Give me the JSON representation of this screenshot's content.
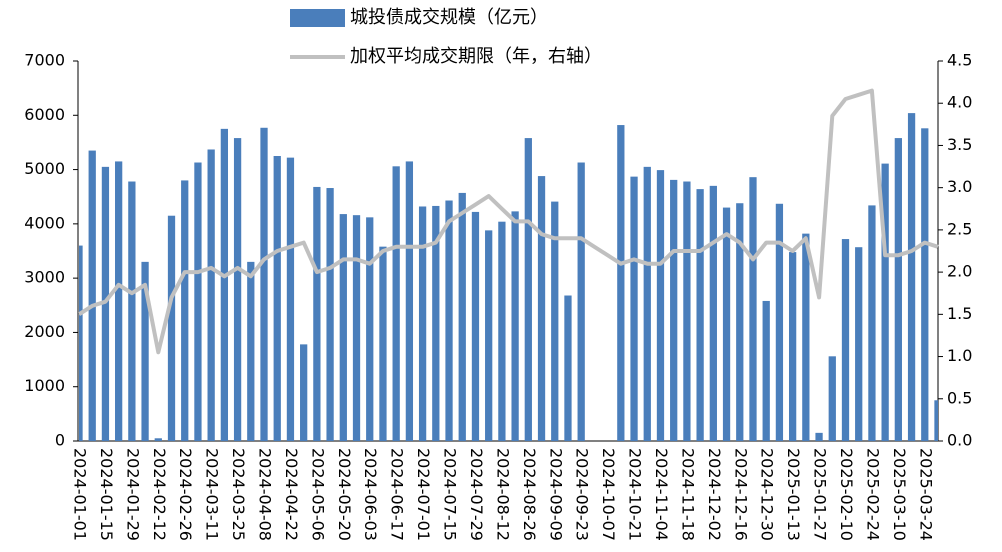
{
  "chart_data": {
    "type": "bar",
    "categories": [
      "2024-01-01",
      null,
      "2024-01-15",
      null,
      "2024-01-29",
      null,
      "2024-02-12",
      null,
      "2024-02-26",
      null,
      "2024-03-11",
      null,
      "2024-03-25",
      null,
      "2024-04-08",
      null,
      "2024-04-22",
      null,
      "2024-05-06",
      null,
      "2024-05-20",
      null,
      "2024-06-03",
      null,
      "2024-06-17",
      null,
      "2024-07-01",
      null,
      "2024-07-15",
      null,
      "2024-07-29",
      null,
      "2024-08-12",
      null,
      "2024-08-26",
      null,
      "2024-09-09",
      null,
      "2024-09-23",
      null,
      "2024-10-07",
      null,
      "2024-10-21",
      null,
      "2024-11-04",
      null,
      "2024-11-18",
      null,
      "2024-12-02",
      null,
      "2024-12-16",
      null,
      "2024-12-30",
      null,
      "2025-01-13",
      null,
      "2025-01-27",
      null,
      "2025-02-10",
      null,
      "2025-02-24",
      null,
      "2025-03-10",
      null,
      "2025-03-24",
      null
    ],
    "series": [
      {
        "name": "城投债成交规模（亿元）",
        "color": "#4a7ebb",
        "type": "bar",
        "values": [
          3600,
          5350,
          5050,
          5150,
          4780,
          3300,
          50,
          4150,
          4800,
          5130,
          5370,
          5750,
          5580,
          3300,
          5770,
          5250,
          5220,
          1780,
          4680,
          4660,
          4180,
          4160,
          4120,
          3580,
          5060,
          5150,
          4320,
          4330,
          4430,
          4570,
          4220,
          3880,
          4040,
          4230,
          5580,
          4880,
          4410,
          2680,
          5130,
          null,
          null,
          5820,
          4870,
          5050,
          4990,
          4810,
          4780,
          4640,
          4700,
          4300,
          4380,
          4860,
          2580,
          4370,
          3480,
          3820,
          150,
          1560,
          3720,
          3570,
          4340,
          5110,
          5580,
          6040,
          5760,
          750
        ]
      },
      {
        "name": "加权平均成交期限（年，右轴）",
        "color": "#c0c0c0",
        "type": "line",
        "axis": "y2",
        "values": [
          1.5,
          1.6,
          1.65,
          1.85,
          1.75,
          1.85,
          1.05,
          1.7,
          2.0,
          2.0,
          2.05,
          1.95,
          2.05,
          1.95,
          2.15,
          2.25,
          2.3,
          2.35,
          2.0,
          2.05,
          2.15,
          2.15,
          2.1,
          2.25,
          2.3,
          2.3,
          2.3,
          2.35,
          2.6,
          2.7,
          2.8,
          2.9,
          2.75,
          2.6,
          2.6,
          2.45,
          2.4,
          2.4,
          2.4,
          2.3,
          2.2,
          2.1,
          2.15,
          2.1,
          2.1,
          2.25,
          2.25,
          2.25,
          2.35,
          2.45,
          2.35,
          2.15,
          2.35,
          2.35,
          2.25,
          2.4,
          1.7,
          3.85,
          4.05,
          4.1,
          4.15,
          2.2,
          2.2,
          2.25,
          2.35,
          2.3
        ]
      }
    ],
    "ylim": [
      0,
      7000
    ],
    "yticks": [
      0,
      1000,
      2000,
      3000,
      4000,
      5000,
      6000,
      7000
    ],
    "y2lim": [
      0,
      4.5
    ],
    "y2ticks": [
      {
        "value": 0,
        "label": "0.0"
      },
      0.5,
      {
        "value": 1,
        "label": "1.0"
      },
      1.5,
      {
        "value": 2,
        "label": "2.0"
      },
      2.5,
      {
        "value": 3,
        "label": "3.0"
      },
      3.5,
      {
        "value": 4,
        "label": "4.0"
      },
      4.5
    ],
    "grid": false,
    "legend": "top"
  }
}
